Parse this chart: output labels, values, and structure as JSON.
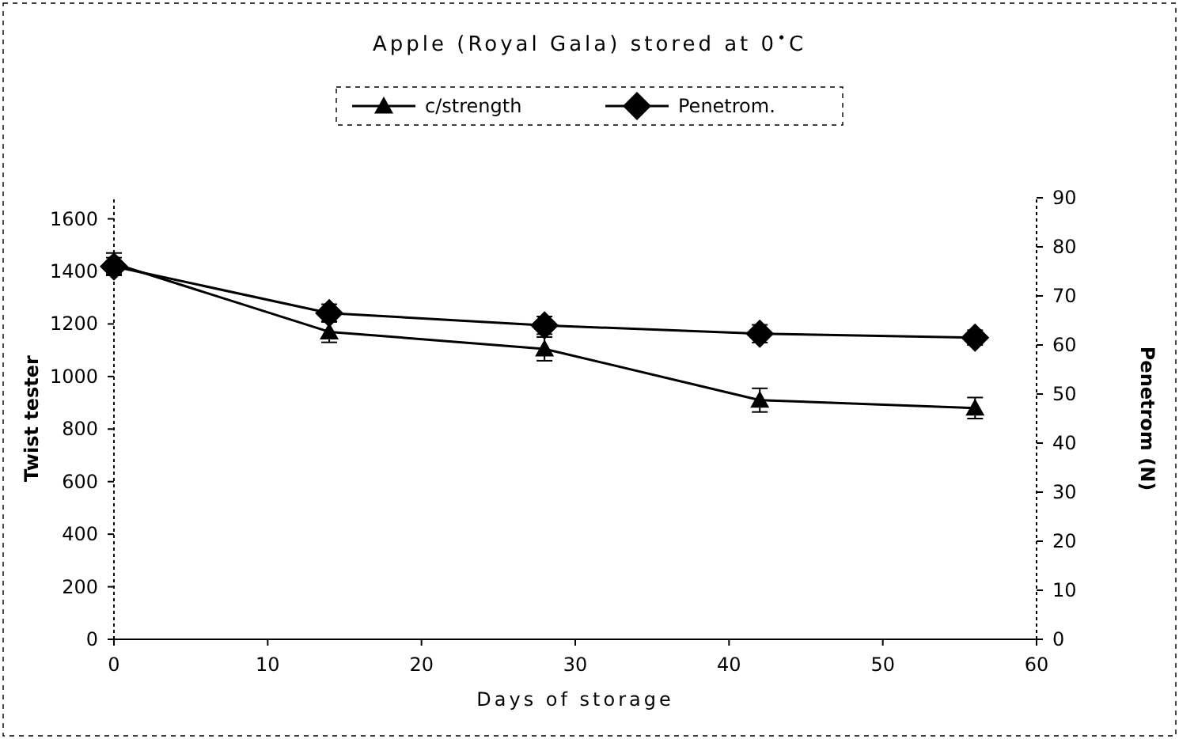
{
  "chart_data": {
    "type": "line",
    "title": "Apple (Royal Gala) stored at 0$^{•}$C",
    "xlabel": "Days of storage",
    "ylabel": "Twist tester",
    "y2label": "Penetrom (N)",
    "x": [
      0,
      14,
      28,
      42,
      56
    ],
    "xlim": [
      0,
      60
    ],
    "xticks": [
      0,
      10,
      20,
      30,
      40,
      50,
      60
    ],
    "ylim": [
      0,
      1680
    ],
    "yticks": [
      0,
      200,
      400,
      600,
      800,
      1000,
      1200,
      1400,
      1600
    ],
    "y2lim": [
      0,
      90
    ],
    "y2ticks": [
      0,
      10,
      20,
      30,
      40,
      50,
      60,
      70,
      80,
      90
    ],
    "legend": "top",
    "grid": false,
    "line_style": "solid",
    "series": [
      {
        "name": "c/strength",
        "color": "#000000",
        "marker": "triangle",
        "values": [
          1430,
          1170,
          1105,
          910,
          880
        ],
        "errors": [
          40,
          40,
          45,
          45,
          40
        ]
      },
      {
        "name": "Penetrom.",
        "color": "#000000",
        "marker": "diamond",
        "axis": "y2",
        "values": [
          76,
          66.5,
          64,
          62.3,
          61.5
        ],
        "errors": [
          1.8,
          1.8,
          1.8,
          1.8,
          1.5
        ]
      }
    ]
  }
}
